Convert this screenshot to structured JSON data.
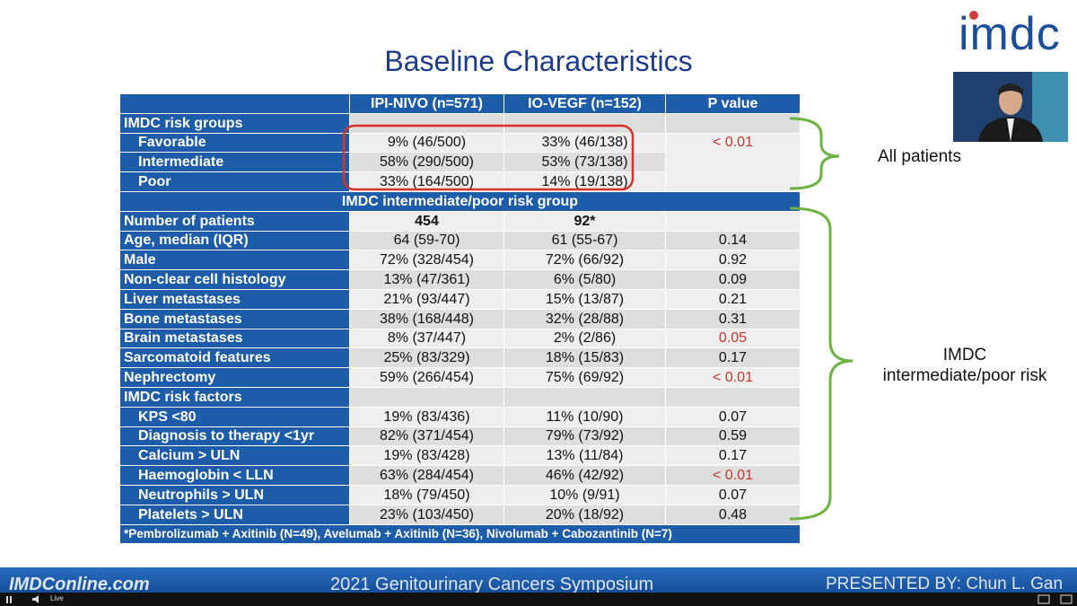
{
  "logo": "imdc",
  "title": "Baseline Characteristics",
  "table": {
    "header": [
      "IPI-NIVO (n=571)",
      "IO-VEGF (n=152)",
      "P value"
    ],
    "rows": [
      [
        "IMDC risk groups"
      ],
      [
        "Favorable",
        "9% (46/500)",
        "33% (46/138)",
        "< 0.01"
      ],
      [
        "Intermediate",
        "58% (290/500)",
        "53% (73/138)"
      ],
      [
        "Poor",
        "33% (164/500)",
        "14% (19/138)"
      ],
      [
        "IMDC intermediate/poor risk group"
      ],
      [
        "Number of patients",
        "454",
        "92*"
      ],
      [
        "Age, median (IQR)",
        "64 (59-70)",
        "61 (55-67)",
        "0.14"
      ],
      [
        "Male",
        "72% (328/454)",
        "72% (66/92)",
        "0.92"
      ],
      [
        "Non-clear cell histology",
        "13% (47/361)",
        "6% (5/80)",
        "0.09"
      ],
      [
        "Liver metastases",
        "21% (93/447)",
        "15% (13/87)",
        "0.21"
      ],
      [
        "Bone metastases",
        "38% (168/448)",
        "32% (28/88)",
        "0.31"
      ],
      [
        "Brain metastases",
        "8% (37/447)",
        "2% (2/86)",
        "0.05"
      ],
      [
        "Sarcomatoid features",
        "25% (83/329)",
        "18% (15/83)",
        "0.17"
      ],
      [
        "Nephrectomy",
        "59% (266/454)",
        "75% (69/92)",
        "< 0.01"
      ],
      [
        "IMDC risk factors"
      ],
      [
        "KPS <80",
        "19% (83/436)",
        "11% (10/90)",
        "0.07"
      ],
      [
        "Diagnosis to therapy <1yr",
        "82% (371/454)",
        "79% (73/92)",
        "0.59"
      ],
      [
        "Calcium > ULN",
        "19% (83/428)",
        "13% (11/84)",
        "0.17"
      ],
      [
        "Haemoglobin < LLN",
        "63% (284/454)",
        "46% (42/92)",
        "< 0.01"
      ],
      [
        "Neutrophils > ULN",
        "18% (79/450)",
        "10% (9/91)",
        "0.07"
      ],
      [
        "Platelets > ULN",
        "23% (103/450)",
        "20% (18/92)",
        "0.48"
      ]
    ],
    "footnote": "*Pembrolizumab + Axitinib (N=49), Avelumab + Axitinib (N=36), Nivolumab + Cabozantinib (N=7)"
  },
  "annotations": {
    "all": "All patients",
    "intermediate": [
      "IMDC",
      "intermediate/poor risk"
    ]
  },
  "footer": {
    "site": "IMDConline.com",
    "meeting": "2021 Genitourinary Cancers Symposium",
    "presenter": "PRESENTED BY: Chun L. Gan"
  },
  "player": {
    "status": "Live"
  }
}
